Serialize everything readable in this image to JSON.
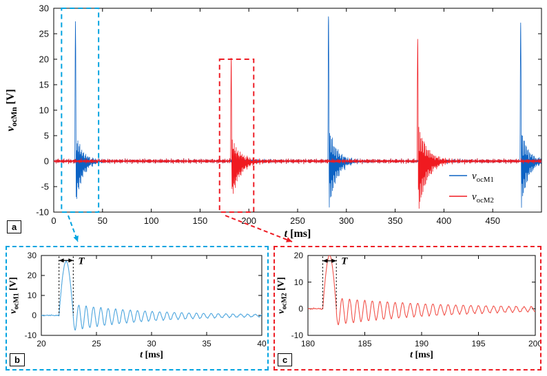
{
  "figure": {
    "panels": {
      "a": "a",
      "b": "b",
      "c": "c"
    },
    "colors": {
      "blue_dash": "#00A3E0",
      "red_dash": "#ED1C24",
      "blue_trace": "#0B62C4",
      "red_trace": "#F01A20"
    }
  },
  "chart_data": [
    {
      "id": "main",
      "type": "line",
      "xlabel": {
        "var": "t",
        "unit": " [ms]"
      },
      "ylabel": {
        "var": "v",
        "sub": "ocMn",
        "unit": " [V]"
      },
      "xlim": [
        0,
        500
      ],
      "ylim": [
        -10,
        30
      ],
      "xticks": [
        0,
        50,
        100,
        150,
        200,
        250,
        300,
        350,
        400,
        450
      ],
      "yticks": [
        -10,
        -5,
        0,
        5,
        10,
        15,
        20,
        25,
        30
      ],
      "grid": false,
      "legend_position": "lower-right-inside",
      "sample_step": 0.25,
      "series": [
        {
          "name": "v_ocM1",
          "color": "#0B62C4",
          "width": 0.8,
          "noise": 0.35,
          "events": [
            {
              "t0": 21.6,
              "w": 1.3,
              "peak": 27,
              "ring": 7,
              "freq": 1.5,
              "tau": 7,
              "sag": 1.5
            },
            {
              "t0": 281,
              "w": 1.3,
              "peak": 28.5,
              "ring": 8,
              "freq": 1.5,
              "tau": 8,
              "sag": 1.5
            },
            {
              "t0": 478,
              "w": 1.3,
              "peak": 27,
              "ring": 8,
              "freq": 1.5,
              "tau": 7,
              "sag": 1.5
            }
          ]
        },
        {
          "name": "v_ocM2",
          "color": "#F01A20",
          "width": 0.8,
          "noise": 0.35,
          "events": [
            {
              "t0": 181.3,
              "w": 1.2,
              "peak": 20,
              "ring": 6,
              "freq": 1.5,
              "tau": 9,
              "sag": 1.5
            },
            {
              "t0": 372.5,
              "w": 1.2,
              "peak": 24,
              "ring": 9,
              "freq": 1.5,
              "tau": 9,
              "sag": 1.5
            }
          ]
        }
      ],
      "legend": [
        {
          "var": "v",
          "sub": "ocM1",
          "color": "#0B62C4"
        },
        {
          "var": "v",
          "sub": "ocM2",
          "color": "#F01A20"
        }
      ],
      "zoom_boxes": [
        {
          "color": "#00A3E0",
          "x1": 8,
          "x2": 46,
          "y1": -10,
          "y2": 30
        },
        {
          "color": "#ED1C24",
          "x1": 170,
          "x2": 205,
          "y1": -10,
          "y2": 20
        }
      ]
    },
    {
      "id": "b",
      "type": "line",
      "xlabel": {
        "var": "t",
        "unit": " [ms]"
      },
      "ylabel": {
        "var": "v",
        "sub": "ocM1",
        "unit": " [V]"
      },
      "xlim": [
        20,
        40
      ],
      "ylim": [
        -10,
        30
      ],
      "xticks": [
        20,
        25,
        30,
        35,
        40
      ],
      "yticks": [
        -10,
        0,
        10,
        20,
        30
      ],
      "grid": false,
      "sample_step": 0.01,
      "series": [
        {
          "name": "v_ocM1",
          "color": "#4CA5DE",
          "width": 1.1,
          "noise": 0.18,
          "events": [
            {
              "t0": 21.6,
              "w": 1.3,
              "peak": 27,
              "ring": 6.5,
              "freq": 1.5,
              "tau": 7,
              "sag": 1
            }
          ]
        }
      ],
      "annotation": {
        "label": "T",
        "x1": 21.6,
        "x2": 22.9,
        "arrow_y": 27.5,
        "dot_top": 29.5,
        "dot_bottom": 0
      }
    },
    {
      "id": "c",
      "type": "line",
      "xlabel": {
        "var": "t",
        "unit": " [ms]"
      },
      "ylabel": {
        "var": "v",
        "sub": "ocM2",
        "unit": " [V]"
      },
      "xlim": [
        180,
        200
      ],
      "ylim": [
        -10,
        20
      ],
      "xticks": [
        180,
        185,
        190,
        195,
        200
      ],
      "yticks": [
        -10,
        0,
        10,
        20
      ],
      "grid": false,
      "sample_step": 0.01,
      "series": [
        {
          "name": "v_ocM2",
          "color": "#F2524A",
          "width": 1.1,
          "noise": 0.18,
          "events": [
            {
              "t0": 181.3,
              "w": 1.2,
              "peak": 20,
              "ring": 5,
              "freq": 1.5,
              "tau": 10,
              "sag": 1
            }
          ]
        }
      ],
      "annotation": {
        "label": "T",
        "x1": 181.3,
        "x2": 182.5,
        "arrow_y": 18,
        "dot_top": 19.6,
        "dot_bottom": 0
      }
    }
  ]
}
